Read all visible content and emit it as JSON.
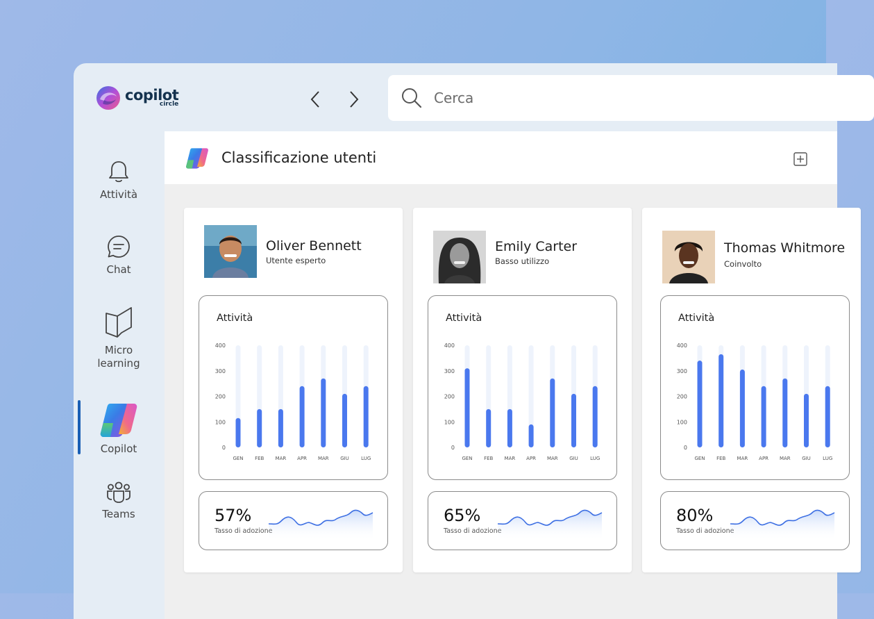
{
  "app": {
    "brand": "copilot",
    "brand_sub": "circle",
    "search": {
      "placeholder": "Cerca"
    }
  },
  "sidebar": {
    "items": [
      {
        "label": "Attività",
        "icon": "bell-icon"
      },
      {
        "label": "Chat",
        "icon": "chat-icon"
      },
      {
        "label": "Micro",
        "label2": "learning",
        "icon": "book-icon"
      },
      {
        "label": "Copilot",
        "icon": "copilot-icon",
        "active": true
      },
      {
        "label": "Teams",
        "icon": "teams-icon"
      }
    ]
  },
  "header": {
    "title": "Classificazione utenti",
    "add_icon": "add-square-icon"
  },
  "colors": {
    "accent": "#1a5fb4",
    "bar": "#4a78ee",
    "bar_track": "#eef3fc"
  },
  "cards": [
    {
      "name": "Oliver Bennett",
      "role": "Utente esperto",
      "activity_title": "Attività",
      "chart_data": {
        "type": "bar",
        "categories": [
          "GEN",
          "FEB",
          "MAR",
          "APR",
          "MAR",
          "GIU",
          "LUG"
        ],
        "values": [
          115,
          150,
          150,
          240,
          270,
          210,
          240
        ],
        "ylim": [
          0,
          400
        ],
        "yticks": [
          0,
          100,
          200,
          300,
          400
        ]
      },
      "adoption": "57%",
      "adoption_label": "Tasso di adozione"
    },
    {
      "name": "Emily Carter",
      "role": "Basso utilizzo",
      "activity_title": "Attività",
      "chart_data": {
        "type": "bar",
        "categories": [
          "GEN",
          "FEB",
          "MAR",
          "APR",
          "MAR",
          "GIU",
          "LUG"
        ],
        "values": [
          310,
          150,
          150,
          90,
          270,
          210,
          240
        ],
        "ylim": [
          0,
          400
        ],
        "yticks": [
          0,
          100,
          200,
          300,
          400
        ]
      },
      "adoption": "65%",
      "adoption_label": "Tasso di adozione"
    },
    {
      "name": "Thomas Whitmore",
      "role": "Coinvolto",
      "activity_title": "Attività",
      "chart_data": {
        "type": "bar",
        "categories": [
          "GEN",
          "FEB",
          "MAR",
          "APR",
          "MAR",
          "GIU",
          "LUG"
        ],
        "values": [
          340,
          365,
          305,
          240,
          270,
          210,
          240
        ],
        "ylim": [
          0,
          400
        ],
        "yticks": [
          0,
          100,
          200,
          300,
          400
        ]
      },
      "adoption": "80%",
      "adoption_label": "Tasso di adozione"
    }
  ]
}
